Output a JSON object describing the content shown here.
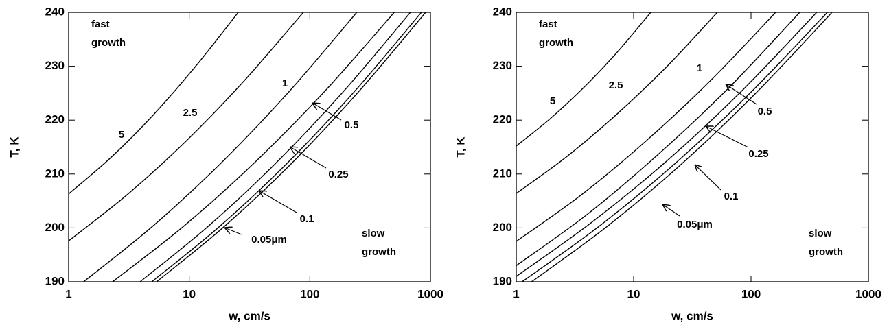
{
  "chart_data": [
    {
      "type": "line",
      "xlabel": "w, cm/s",
      "ylabel": "T, K",
      "xscale": "log",
      "xlim": [
        1,
        1000
      ],
      "ylim": [
        190,
        240
      ],
      "xticks": [
        1,
        10,
        100,
        1000
      ],
      "yticks": [
        190,
        200,
        210,
        220,
        230,
        240
      ],
      "annotations": [
        "fast growth",
        "slow growth"
      ],
      "series": [
        {
          "name": "5",
          "color": "#000000",
          "x": [
            1,
            2.25,
            5.05,
            11.3,
            25.5
          ],
          "values": [
            206.3,
            213.1,
            221.0,
            230.0,
            240
          ]
        },
        {
          "name": "2.5",
          "color": "#000000",
          "x": [
            1,
            3.07,
            9.4,
            28.8,
            88.3
          ],
          "values": [
            197.6,
            206.2,
            216.1,
            227.4,
            240
          ]
        },
        {
          "name": "1",
          "color": "#000000",
          "x": [
            1.33,
            4.91,
            18.1,
            66.7,
            245
          ],
          "values": [
            190,
            200.2,
            211.9,
            225.2,
            240
          ]
        },
        {
          "name": "0.5",
          "color": "#000000",
          "x": [
            2.31,
            8.87,
            34.0,
            131,
            501
          ],
          "values": [
            190,
            200.2,
            211.9,
            225.2,
            240
          ]
        },
        {
          "name": "0.25",
          "color": "#000000",
          "x": [
            3.91,
            14.2,
            51.6,
            188,
            682
          ],
          "values": [
            190,
            200.2,
            211.9,
            225.2,
            240
          ]
        },
        {
          "name": "0.1",
          "color": "#000000",
          "x": [
            4.89,
            17.7,
            64.1,
            232,
            841
          ],
          "values": [
            190,
            200.2,
            211.9,
            225.2,
            240
          ]
        },
        {
          "name": "0.05μm",
          "color": "#000000",
          "x": [
            5.36,
            19.4,
            70.0,
            252,
            912
          ],
          "values": [
            190,
            200.2,
            211.9,
            225.2,
            240
          ]
        }
      ]
    },
    {
      "type": "line",
      "xlabel": "w, cm/s",
      "ylabel": "T, K",
      "xscale": "log",
      "xlim": [
        1,
        1000
      ],
      "ylim": [
        190,
        240
      ],
      "xticks": [
        1,
        10,
        100,
        1000
      ],
      "yticks": [
        190,
        200,
        210,
        220,
        230,
        240
      ],
      "annotations": [
        "fast growth",
        "slow growth"
      ],
      "series": [
        {
          "name": "5",
          "color": "#000000",
          "x": [
            1,
            1.93,
            3.74,
            7.24,
            14.0
          ],
          "values": [
            215.2,
            220.2,
            226.0,
            232.6,
            240
          ]
        },
        {
          "name": "2.5",
          "color": "#000000",
          "x": [
            1,
            2.68,
            7.19,
            19.3,
            51.6
          ],
          "values": [
            206.4,
            213.2,
            221.1,
            230.0,
            240
          ]
        },
        {
          "name": "1",
          "color": "#000000",
          "x": [
            1,
            3.57,
            12.7,
            45.5,
            162
          ],
          "values": [
            197.5,
            206.1,
            216.1,
            227.4,
            240
          ]
        },
        {
          "name": "0.5",
          "color": "#000000",
          "x": [
            1,
            4.02,
            16.1,
            64.7,
            260
          ],
          "values": [
            193,
            202.5,
            213.6,
            226.0,
            240
          ]
        },
        {
          "name": "0.25",
          "color": "#000000",
          "x": [
            1,
            4.37,
            19.1,
            83.2,
            363
          ],
          "values": [
            191,
            201.0,
            212.4,
            225.4,
            240
          ]
        },
        {
          "name": "0.1",
          "color": "#000000",
          "x": [
            1.12,
            5.01,
            22.4,
            100,
            447
          ],
          "values": [
            190,
            200.2,
            211.9,
            225.2,
            240
          ]
        },
        {
          "name": "0.05μm",
          "color": "#000000",
          "x": [
            1.35,
            5.89,
            25.7,
            112,
            490
          ],
          "values": [
            190,
            200.2,
            211.9,
            225.2,
            240
          ]
        }
      ]
    }
  ]
}
